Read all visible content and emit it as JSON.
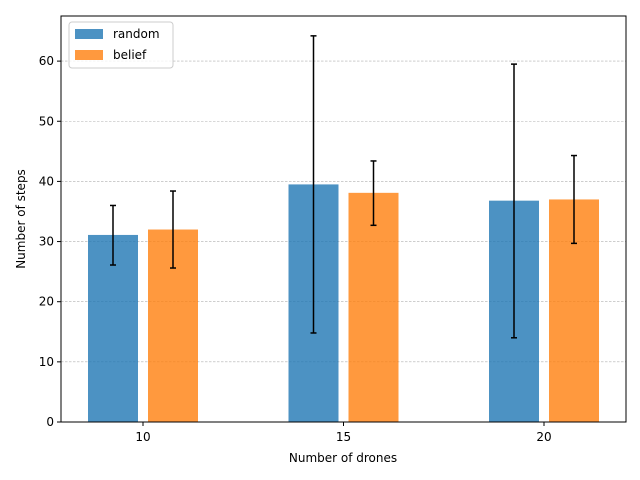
{
  "chart_data": {
    "type": "bar",
    "title": "",
    "xlabel": "Number of drones",
    "ylabel": "Number of steps",
    "categories": [
      "10",
      "15",
      "20"
    ],
    "series": [
      {
        "name": "random",
        "color": "#1f77b4",
        "values": [
          31.1,
          39.5,
          36.8
        ],
        "err_low": [
          26.1,
          14.8,
          14.0
        ],
        "err_high": [
          36.0,
          64.2,
          59.5
        ]
      },
      {
        "name": "belief",
        "color": "#ff7f0e",
        "values": [
          32.0,
          38.1,
          37.0
        ],
        "err_low": [
          25.6,
          32.7,
          29.7
        ],
        "err_high": [
          38.4,
          43.4,
          44.3
        ]
      }
    ],
    "yticks": [
      0,
      10,
      20,
      30,
      40,
      50,
      60
    ],
    "ylim": [
      0,
      67.5
    ],
    "grid": "y-dashed",
    "legend_position": "top-left"
  }
}
